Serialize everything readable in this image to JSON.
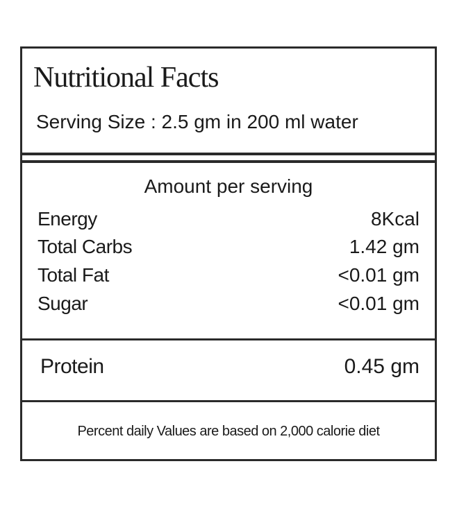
{
  "header": {
    "title": "Nutritional Facts",
    "serving_size": "Serving Size : 2.5 gm in 200 ml water"
  },
  "section": {
    "heading": "Amount per serving",
    "rows": [
      [
        "Energy",
        "8Kcal"
      ],
      [
        "Total Carbs",
        "1.42 gm"
      ],
      [
        "Total Fat",
        "<0.01 gm"
      ],
      [
        "Sugar",
        "<0.01 gm"
      ]
    ]
  },
  "protein": [
    "Protein",
    "0.45 gm"
  ],
  "footer": "Percent daily Values are based on 2,000 calorie diet"
}
